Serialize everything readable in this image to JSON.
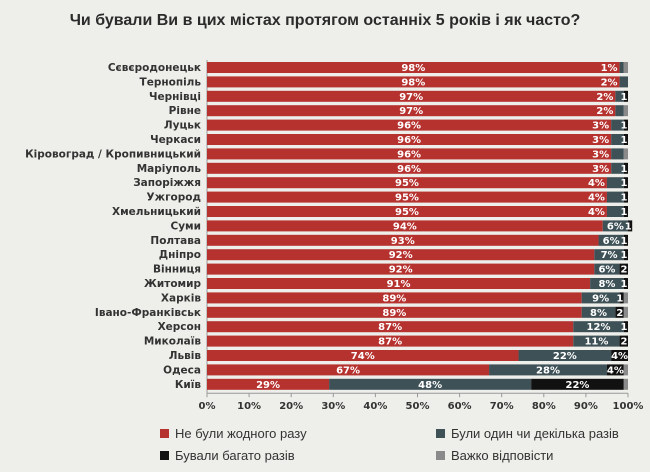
{
  "chart_data": {
    "type": "bar",
    "stacked": true,
    "orientation": "horizontal",
    "title": "Чи бували Ви в цих містах протягом останніх 5 років і як часто?",
    "xlim": [
      0,
      100
    ],
    "xticks": [
      "0%",
      "10%",
      "20%",
      "30%",
      "40%",
      "50%",
      "60%",
      "70%",
      "80%",
      "90%",
      "100%"
    ],
    "categories": [
      "Сєвєродонецьк",
      "Тернопіль",
      "Чернівці",
      "Рівне",
      "Луцьк",
      "Черкаси",
      "Кіровоград / Кропивницький",
      "Маріуполь",
      "Запоріжжя",
      "Ужгород",
      "Хмельницький",
      "Суми",
      "Полтава",
      "Дніпро",
      "Вінниця",
      "Житомир",
      "Харків",
      "Івано-Франківськ",
      "Херсон",
      "Миколаїв",
      "Львів",
      "Одеса",
      "Київ"
    ],
    "series": [
      {
        "name": "Не були жодного разу",
        "color": "#b5322f",
        "values": [
          98,
          98,
          97,
          97,
          96,
          96,
          96,
          96,
          95,
          95,
          95,
          94,
          93,
          92,
          92,
          91,
          89,
          89,
          87,
          87,
          74,
          67,
          29
        ]
      },
      {
        "name": "Були один чи декілька разів",
        "color": "#3e5157",
        "values": [
          1,
          2,
          2,
          2,
          3,
          3,
          3,
          3,
          4,
          4,
          4,
          6,
          6,
          7,
          6,
          8,
          9,
          8,
          12,
          11,
          22,
          28,
          48
        ]
      },
      {
        "name": "Бували багато разів",
        "color": "#111111",
        "values": [
          0,
          0,
          1,
          0,
          1,
          1,
          0,
          1,
          1,
          1,
          1,
          1,
          1,
          1,
          2,
          1,
          1,
          2,
          1,
          2,
          4,
          4,
          22
        ]
      },
      {
        "name": "Важко відповісти",
        "color": "#8a8a8a",
        "values": [
          1,
          0,
          0,
          1,
          0,
          0,
          1,
          0,
          0,
          0,
          0,
          0,
          0,
          0,
          0,
          0,
          1,
          1,
          0,
          0,
          0,
          1,
          1
        ]
      }
    ],
    "legend": "bottom"
  }
}
